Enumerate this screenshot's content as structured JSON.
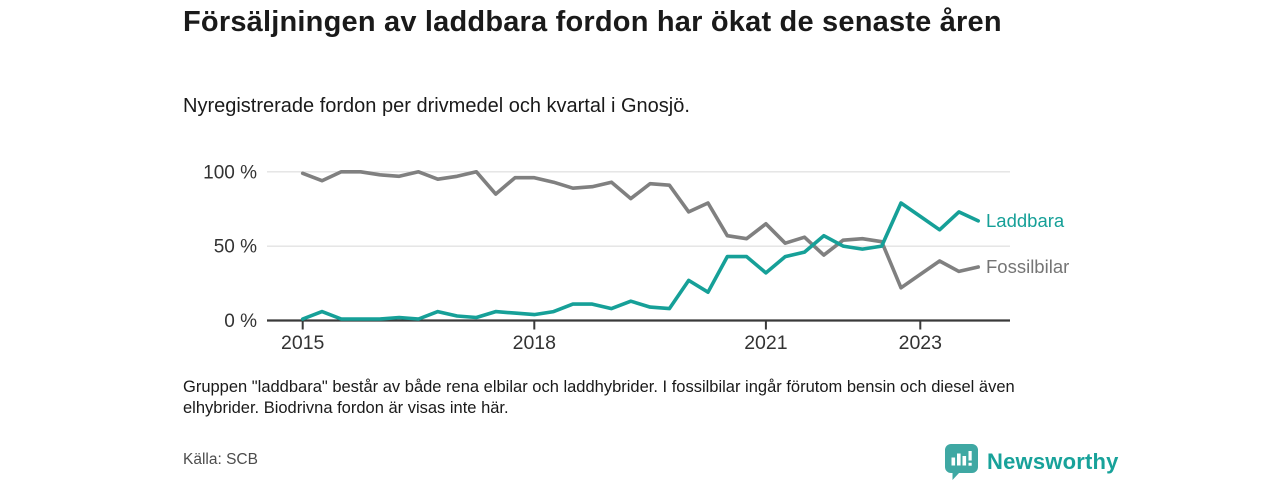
{
  "header": {
    "title": "Försäljningen av laddbara fordon har ökat de senaste åren",
    "subtitle": "Nyregistrerade fordon per drivmedel och kvartal i Gnosjö."
  },
  "chart_data": {
    "type": "line",
    "unit": "%",
    "x_start": "2015 Q1",
    "x_interval": "quarter",
    "n_points": 36,
    "ylim": [
      0,
      100
    ],
    "grid": "horizontal-only",
    "legend_position": "right-of-line-ends",
    "y_ticks": [
      {
        "value": 0,
        "label": "0 %"
      },
      {
        "value": 50,
        "label": "50 %"
      },
      {
        "value": 100,
        "label": "100 %"
      }
    ],
    "x_ticks": [
      {
        "quarter_index": 0,
        "label": "2015"
      },
      {
        "quarter_index": 12,
        "label": "2018"
      },
      {
        "quarter_index": 24,
        "label": "2021"
      },
      {
        "quarter_index": 32,
        "label": "2023"
      }
    ],
    "series": [
      {
        "name": "Fossilbilar",
        "color": "#808080",
        "label_color": "#757575",
        "values": [
          99,
          94,
          100,
          100,
          98,
          97,
          100,
          95,
          97,
          100,
          85,
          96,
          96,
          93,
          89,
          90,
          93,
          82,
          92,
          91,
          73,
          79,
          57,
          55,
          65,
          52,
          56,
          44,
          54,
          55,
          53,
          22,
          31,
          40,
          33,
          36
        ]
      },
      {
        "name": "Laddbara",
        "color": "#16a098",
        "label_color": "#16a098",
        "values": [
          1,
          6,
          1,
          1,
          1,
          2,
          1,
          6,
          3,
          2,
          6,
          5,
          4,
          6,
          11,
          11,
          8,
          13,
          9,
          8,
          27,
          19,
          43,
          43,
          32,
          43,
          46,
          57,
          50,
          48,
          50,
          79,
          70,
          61,
          73,
          67
        ]
      }
    ]
  },
  "footnote": "Gruppen \"laddbara\" består av både rena elbilar och laddhybrider. I fossilbilar ingår förutom bensin och diesel även elhybrider. Biodrivna fordon är visas inte här.",
  "source": "Källa: SCB",
  "branding": {
    "logo_text": "Newsworthy"
  },
  "colors": {
    "accent_teal": "#16a098",
    "line_gray": "#808080",
    "axis": "#3a3a3a",
    "gridline": "#e3e3e3",
    "logo_icon": "#3fa8a3",
    "logo_text": "#18a29a"
  }
}
